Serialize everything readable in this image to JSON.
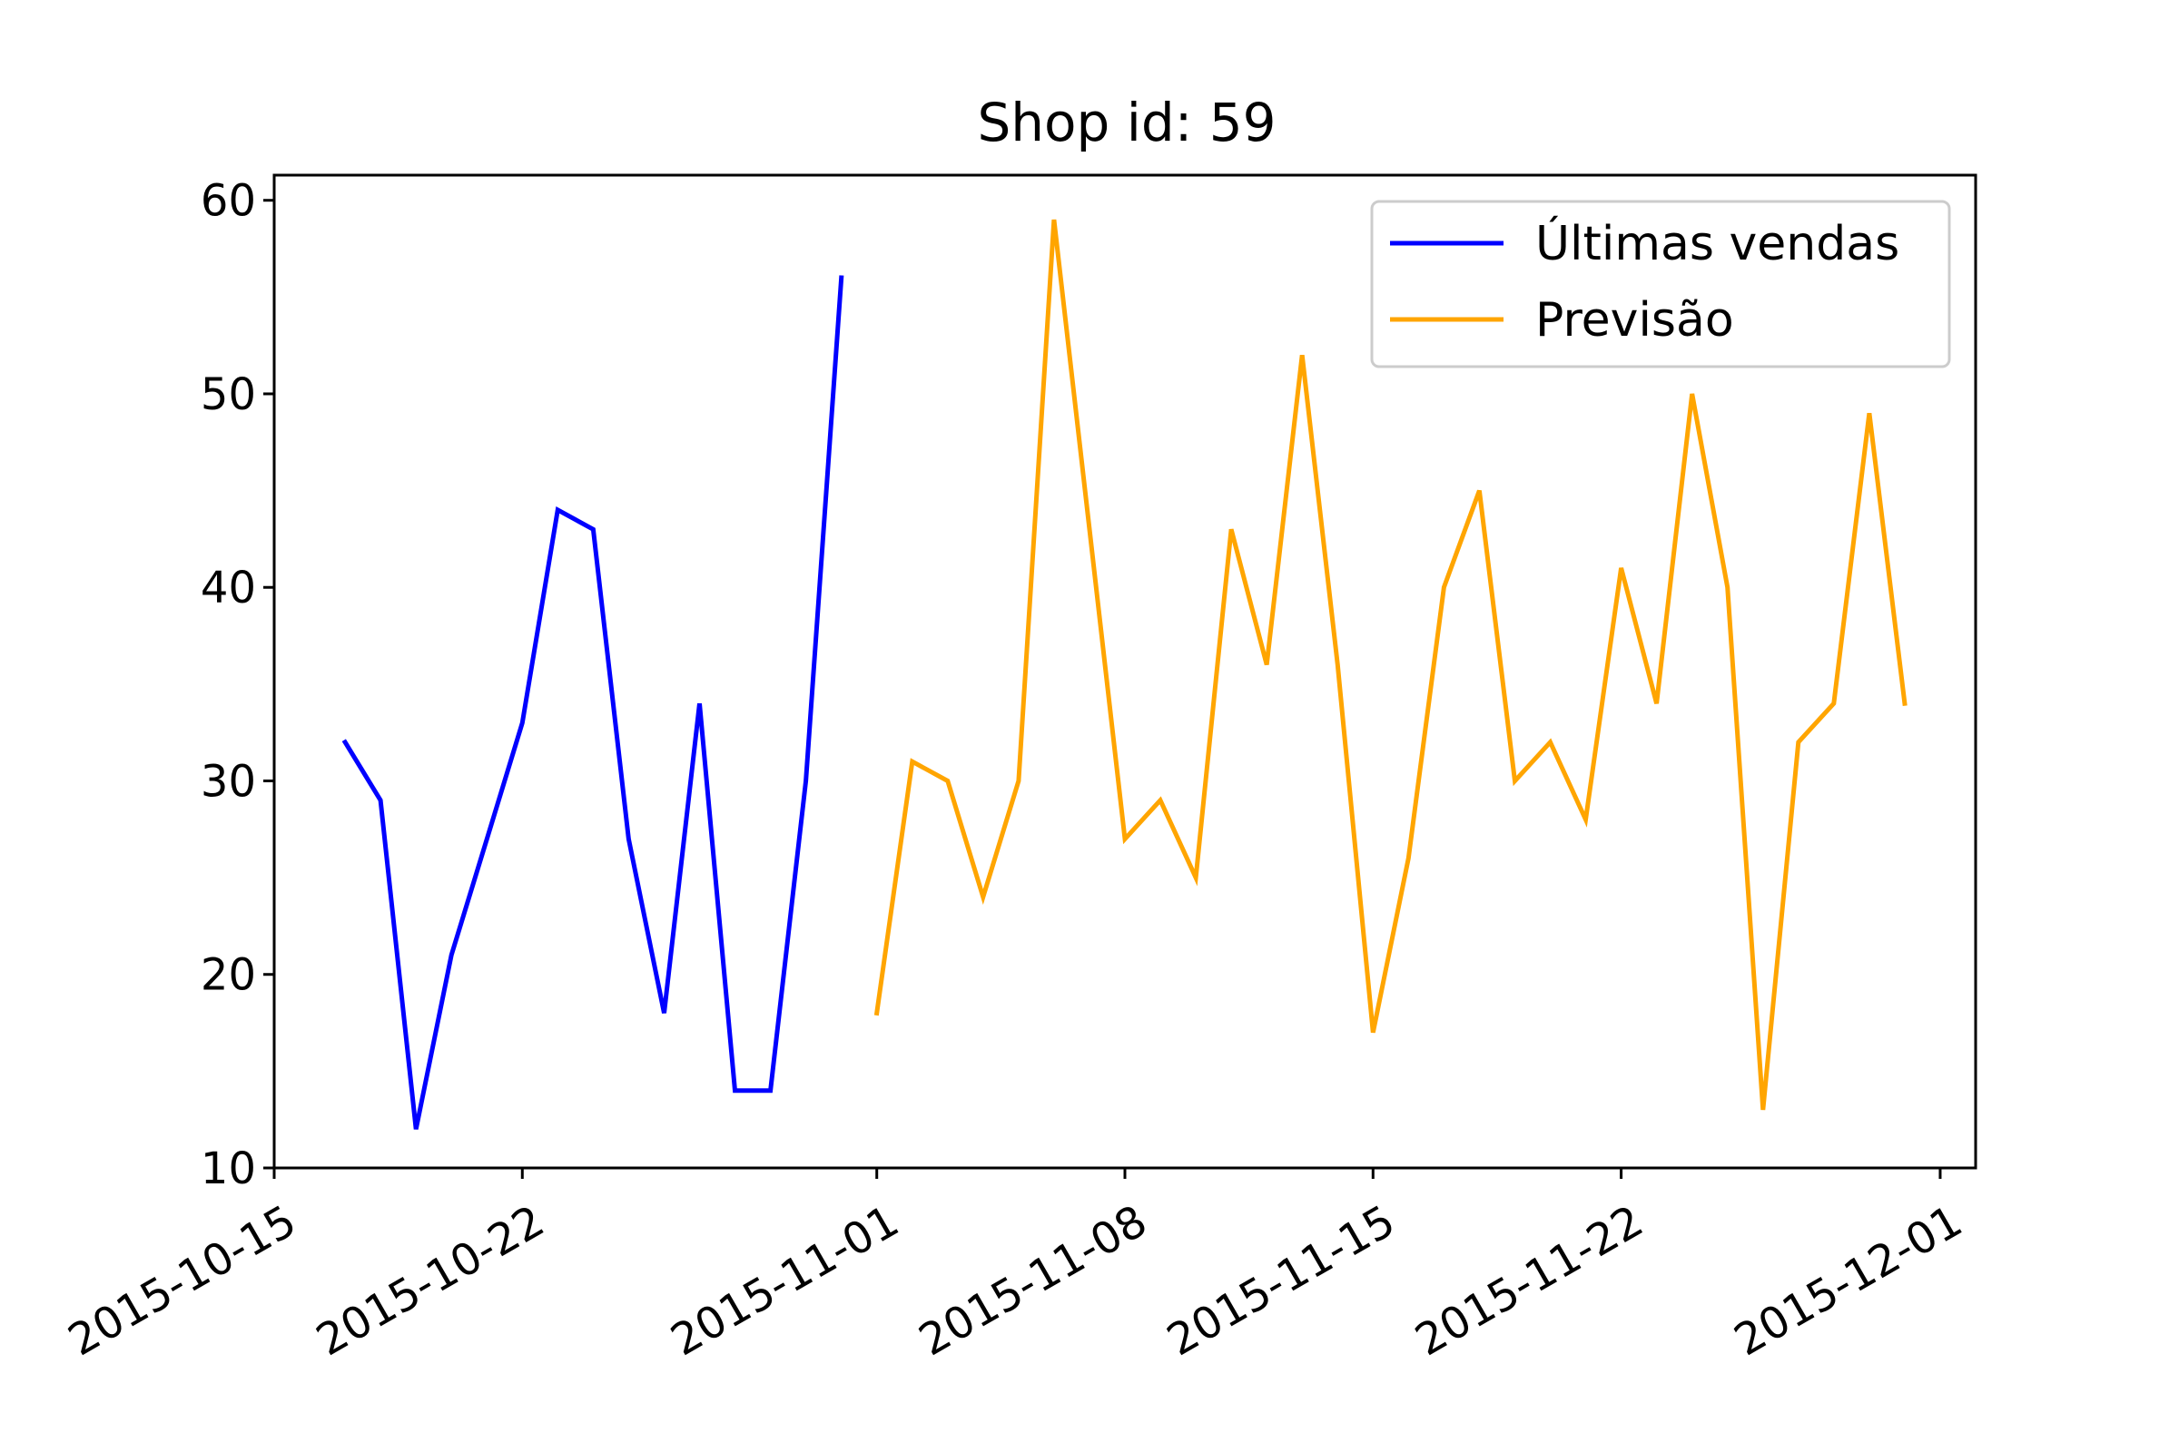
{
  "chart_data": {
    "type": "line",
    "title": "Shop id: 59",
    "xlabel": "",
    "ylabel": "",
    "x_type": "date",
    "xlim": [
      "2015-10-15",
      "2015-12-02"
    ],
    "ylim": [
      10,
      61.3
    ],
    "x_ticks": [
      "2015-10-15",
      "2015-10-22",
      "2015-11-01",
      "2015-11-08",
      "2015-11-15",
      "2015-11-22",
      "2015-12-01"
    ],
    "y_ticks": [
      10,
      20,
      30,
      40,
      50,
      60
    ],
    "grid": false,
    "legend_position": "top-right",
    "series": [
      {
        "name": "Últimas vendas",
        "color": "#0000ff",
        "x": [
          "2015-10-17",
          "2015-10-18",
          "2015-10-19",
          "2015-10-20",
          "2015-10-21",
          "2015-10-22",
          "2015-10-23",
          "2015-10-24",
          "2015-10-25",
          "2015-10-26",
          "2015-10-27",
          "2015-10-28",
          "2015-10-29",
          "2015-10-30",
          "2015-10-31"
        ],
        "y": [
          32,
          29,
          12,
          21,
          27,
          33,
          44,
          43,
          27,
          18,
          34,
          14,
          14,
          30,
          56
        ]
      },
      {
        "name": "Previsão",
        "color": "#ffa500",
        "x": [
          "2015-11-01",
          "2015-11-02",
          "2015-11-03",
          "2015-11-04",
          "2015-11-05",
          "2015-11-06",
          "2015-11-07",
          "2015-11-08",
          "2015-11-09",
          "2015-11-10",
          "2015-11-11",
          "2015-11-12",
          "2015-11-13",
          "2015-11-14",
          "2015-11-15",
          "2015-11-16",
          "2015-11-17",
          "2015-11-18",
          "2015-11-19",
          "2015-11-20",
          "2015-11-21",
          "2015-11-22",
          "2015-11-23",
          "2015-11-24",
          "2015-11-25",
          "2015-11-26",
          "2015-11-27",
          "2015-11-28",
          "2015-11-29",
          "2015-11-30"
        ],
        "y": [
          18,
          31,
          30,
          24,
          30,
          59,
          43,
          27,
          29,
          25,
          43,
          36,
          52,
          36,
          17,
          26,
          40,
          45,
          30,
          32,
          28,
          41,
          34,
          50,
          40,
          13,
          32,
          34,
          49,
          34
        ]
      }
    ]
  }
}
